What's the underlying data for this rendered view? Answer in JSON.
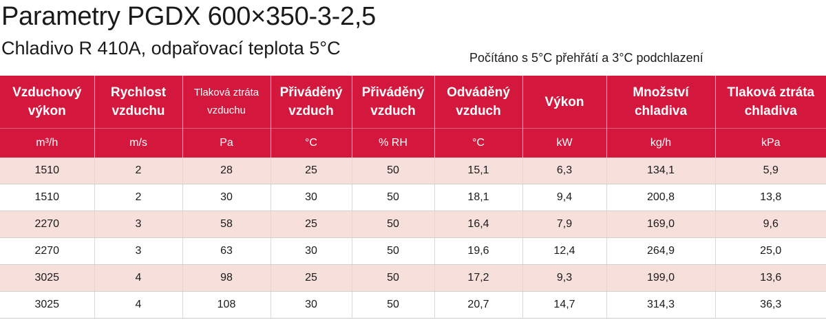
{
  "title": "Parametry PGDX 600×350-3-2,5",
  "subtitle": "Chladivo R 410A, odpařovací teplota 5°C",
  "note": "Počítáno s 5°C přehřátí a 3°C podchlazení",
  "colors": {
    "header_bg": "#d4183d",
    "row_alt_bg": "#f7dfdb"
  },
  "table": {
    "headers": [
      {
        "label": "Vzduchový výkon",
        "unit": "m³/h"
      },
      {
        "label": "Rychlost vzduchu",
        "unit": "m/s"
      },
      {
        "label": "Tlaková ztráta vzduchu",
        "unit": "Pa"
      },
      {
        "label": "Přiváděný vzduch",
        "unit": "°C"
      },
      {
        "label": "Přiváděný vzduch",
        "unit": "% RH"
      },
      {
        "label": "Odváděný vzduch",
        "unit": "°C"
      },
      {
        "label": "Výkon",
        "unit": "kW"
      },
      {
        "label": "Množství chladiva",
        "unit": "kg/h"
      },
      {
        "label": "Tlaková ztráta chladiva",
        "unit": "kPa"
      }
    ],
    "rows": [
      [
        "1510",
        "2",
        "28",
        "25",
        "50",
        "15,1",
        "6,3",
        "134,1",
        "5,9"
      ],
      [
        "1510",
        "2",
        "30",
        "30",
        "50",
        "18,1",
        "9,4",
        "200,8",
        "13,8"
      ],
      [
        "2270",
        "3",
        "58",
        "25",
        "50",
        "16,4",
        "7,9",
        "169,0",
        "9,6"
      ],
      [
        "2270",
        "3",
        "63",
        "30",
        "50",
        "19,6",
        "12,4",
        "264,9",
        "25,0"
      ],
      [
        "3025",
        "4",
        "98",
        "25",
        "50",
        "17,2",
        "9,3",
        "199,0",
        "13,6"
      ],
      [
        "3025",
        "4",
        "108",
        "30",
        "50",
        "20,7",
        "14,7",
        "314,3",
        "36,3"
      ]
    ]
  }
}
